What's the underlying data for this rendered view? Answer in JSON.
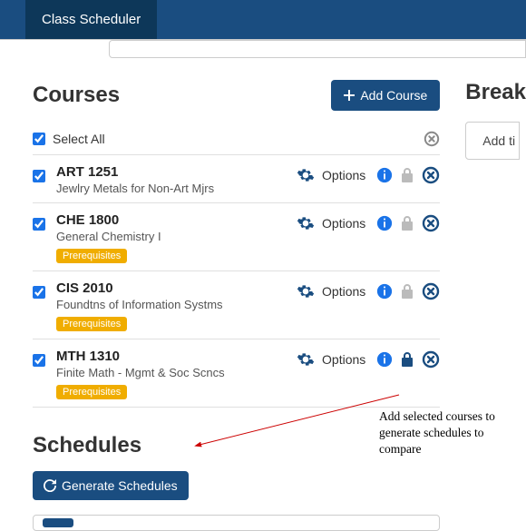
{
  "colors": {
    "primary": "#1a4d80",
    "accent": "#1a73e8",
    "badge": "#f0ad00",
    "muted_lock": "#bbbbbb"
  },
  "header": {
    "active_tab": "Class Scheduler"
  },
  "courses_section": {
    "title": "Courses",
    "add_button": "Add Course",
    "select_all_label": "Select All",
    "select_all_checked": true,
    "options_label": "Options",
    "prereq_label": "Prerequisites",
    "items": [
      {
        "code": "ART 1251",
        "name": "Jewlry Metals for Non-Art Mjrs",
        "checked": true,
        "has_prereq_badge": false,
        "locked": false
      },
      {
        "code": "CHE 1800",
        "name": "General Chemistry I",
        "checked": true,
        "has_prereq_badge": true,
        "locked": false
      },
      {
        "code": "CIS 2010",
        "name": "Foundtns of Information Systms",
        "checked": true,
        "has_prereq_badge": true,
        "locked": false
      },
      {
        "code": "MTH 1310",
        "name": "Finite Math - Mgmt & Soc Scncs",
        "checked": true,
        "has_prereq_badge": true,
        "locked": true
      }
    ]
  },
  "schedules_section": {
    "title": "Schedules",
    "generate_button": "Generate Schedules"
  },
  "right_panel": {
    "title_fragment": "Break",
    "box_text": "Add ti"
  },
  "annotation": {
    "text": "Add selected courses to generate schedules to compare"
  }
}
